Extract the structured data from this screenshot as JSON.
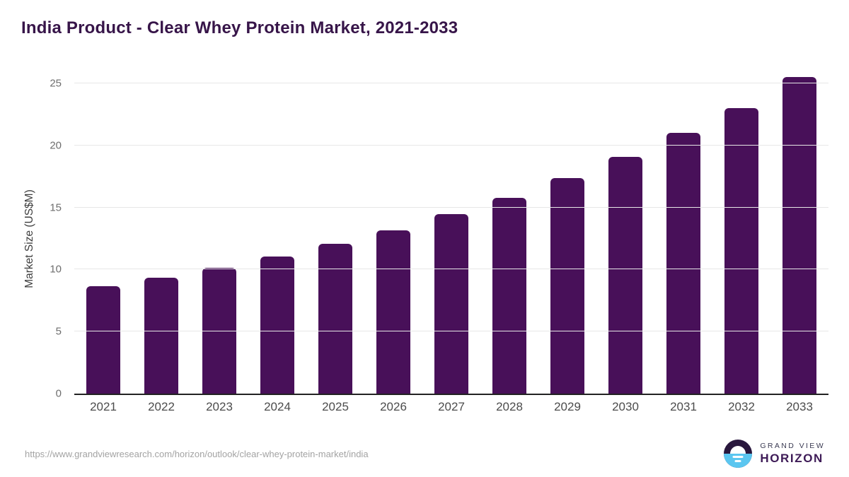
{
  "title": "India Product - Clear Whey Protein Market, 2021-2033",
  "chart_data": {
    "type": "bar",
    "categories": [
      "2021",
      "2022",
      "2023",
      "2024",
      "2025",
      "2026",
      "2027",
      "2028",
      "2029",
      "2030",
      "2031",
      "2032",
      "2033"
    ],
    "values": [
      8.6,
      9.3,
      10.1,
      11.0,
      12.0,
      13.1,
      14.4,
      15.7,
      17.3,
      19.0,
      20.9,
      22.9,
      25.4
    ],
    "title": "India Product - Clear Whey Protein Market, 2021-2033",
    "xlabel": "",
    "ylabel": "Market Size (US$M)",
    "ylim": [
      0,
      25
    ],
    "yticks": [
      0,
      5,
      10,
      15,
      20,
      25
    ],
    "grid": true,
    "legend": "none",
    "bar_color": "#481059"
  },
  "colors": {
    "bar": "#481059",
    "title_text": "#371549",
    "axis_baseline": "#222222",
    "gridline": "#e7e7e7",
    "y_tick_text": "#6e6e6e",
    "x_tick_text": "#4c4c4c",
    "url_text": "#a3a3a3",
    "logo_dark": "#29173d",
    "logo_blue": "#5bc6f0",
    "logo_horizon_text": "#3e1b57"
  },
  "footer": {
    "source_url": "https://www.grandviewresearch.com/horizon/outlook/clear-whey-protein-market/india",
    "logo": {
      "line1": "GRAND VIEW",
      "line2": "HORIZON"
    }
  }
}
